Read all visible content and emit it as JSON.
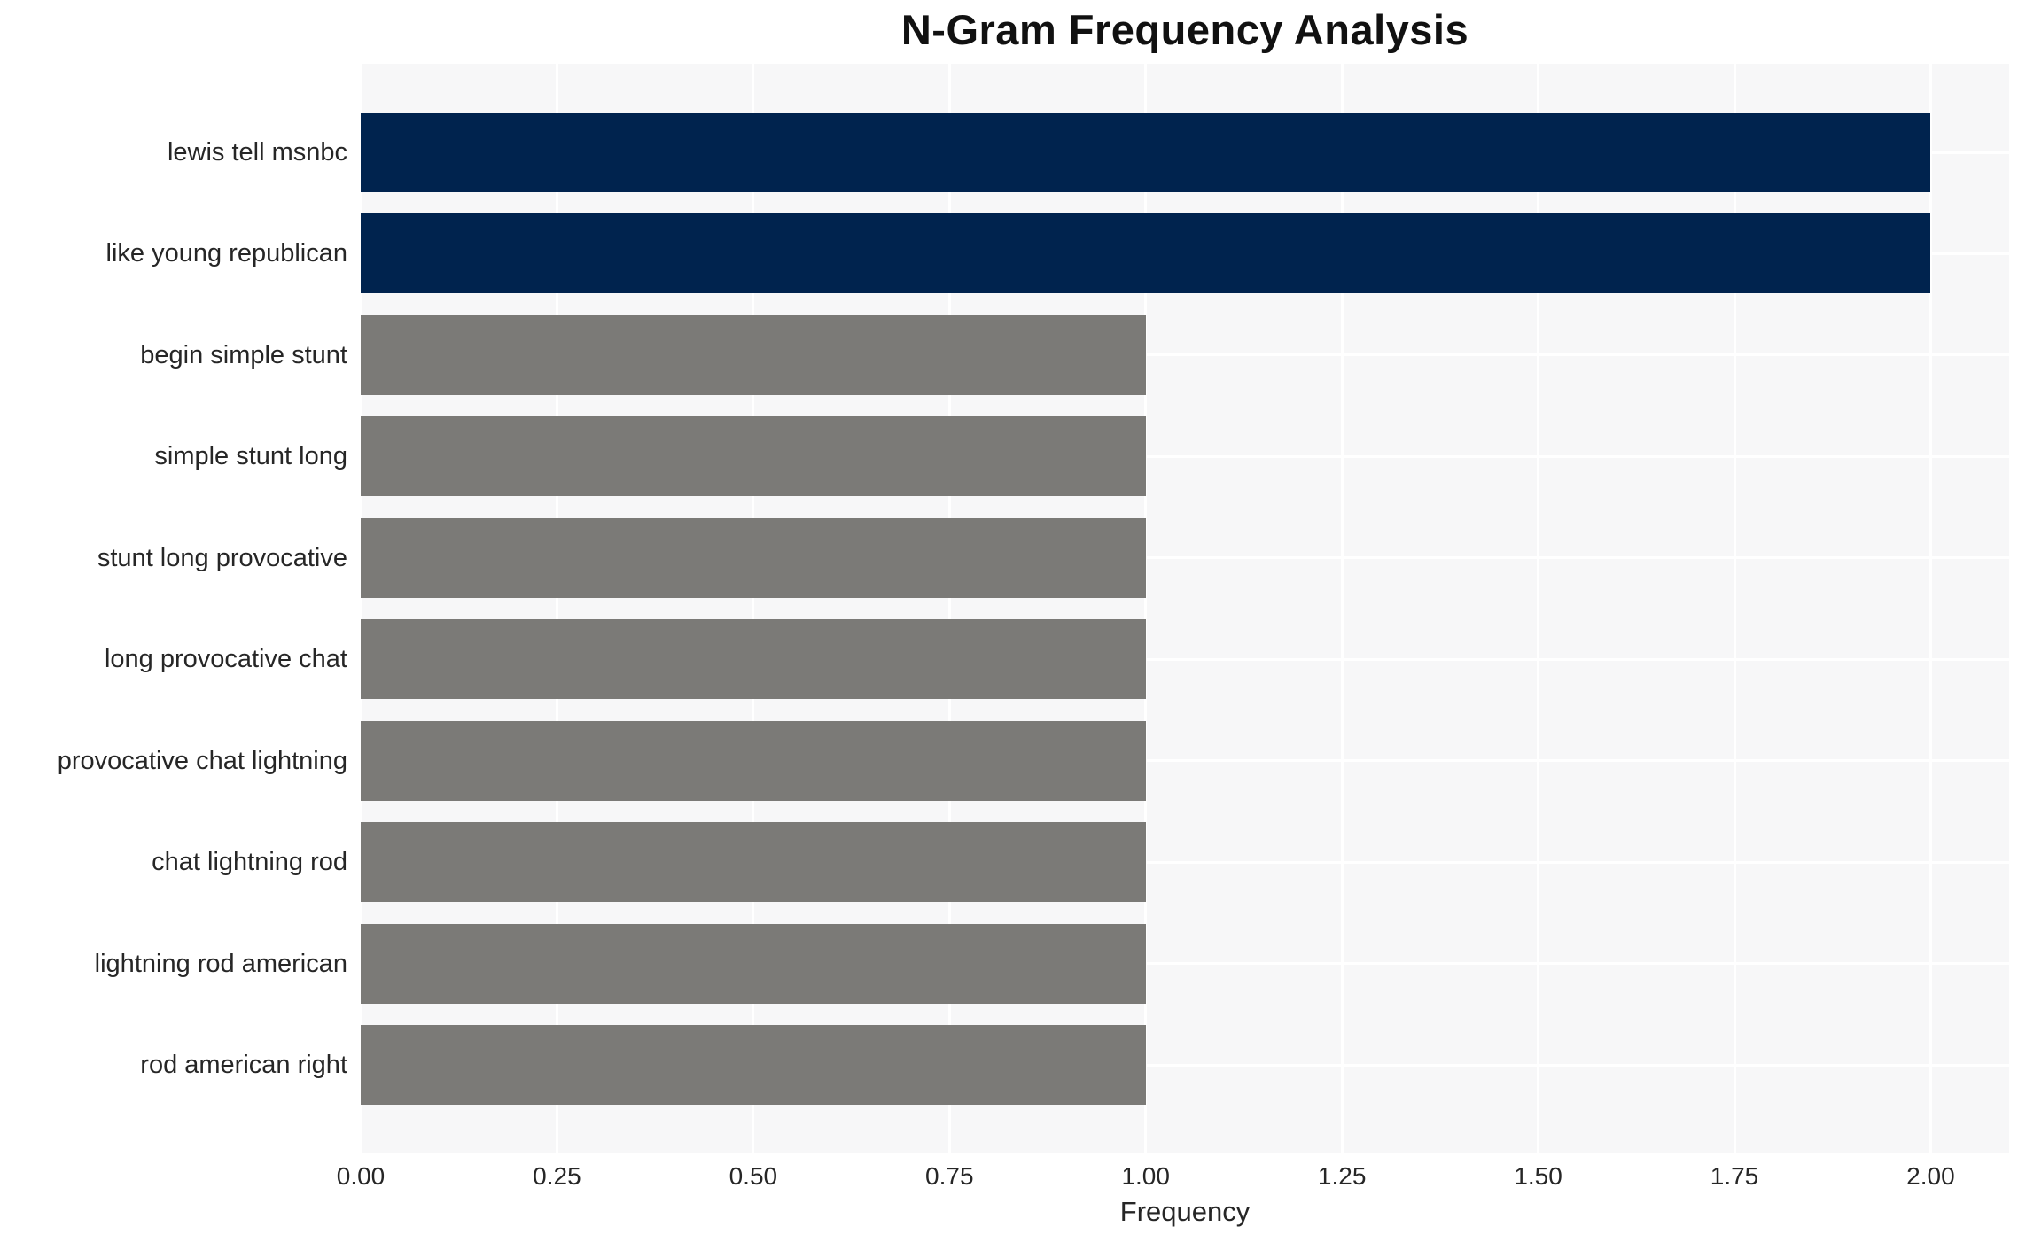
{
  "chart_data": {
    "type": "bar",
    "orientation": "horizontal",
    "title": "N-Gram Frequency Analysis",
    "xlabel": "Frequency",
    "ylabel": "",
    "categories": [
      "lewis tell msnbc",
      "like young republican",
      "begin simple stunt",
      "simple stunt long",
      "stunt long provocative",
      "long provocative chat",
      "provocative chat lightning",
      "chat lightning rod",
      "lightning rod american",
      "rod american right"
    ],
    "values": [
      2,
      2,
      1,
      1,
      1,
      1,
      1,
      1,
      1,
      1
    ],
    "bar_colors": [
      "#00234e",
      "#00234e",
      "#7b7a77",
      "#7b7a77",
      "#7b7a77",
      "#7b7a77",
      "#7b7a77",
      "#7b7a77",
      "#7b7a77",
      "#7b7a77"
    ],
    "xlim": [
      0,
      2.1
    ],
    "xticks": [
      0.0,
      0.25,
      0.5,
      0.75,
      1.0,
      1.25,
      1.5,
      1.75,
      2.0
    ],
    "xtick_labels": [
      "0.00",
      "0.25",
      "0.50",
      "0.75",
      "1.00",
      "1.25",
      "1.50",
      "1.75",
      "2.00"
    ],
    "grid": true,
    "legend": false,
    "colors": {
      "highlight_bar": "#00234e",
      "normal_bar": "#7b7a77",
      "plot_background": "#f7f7f8",
      "gridline": "#ffffff",
      "text": "#262626",
      "figure_background": "#ffffff"
    }
  }
}
